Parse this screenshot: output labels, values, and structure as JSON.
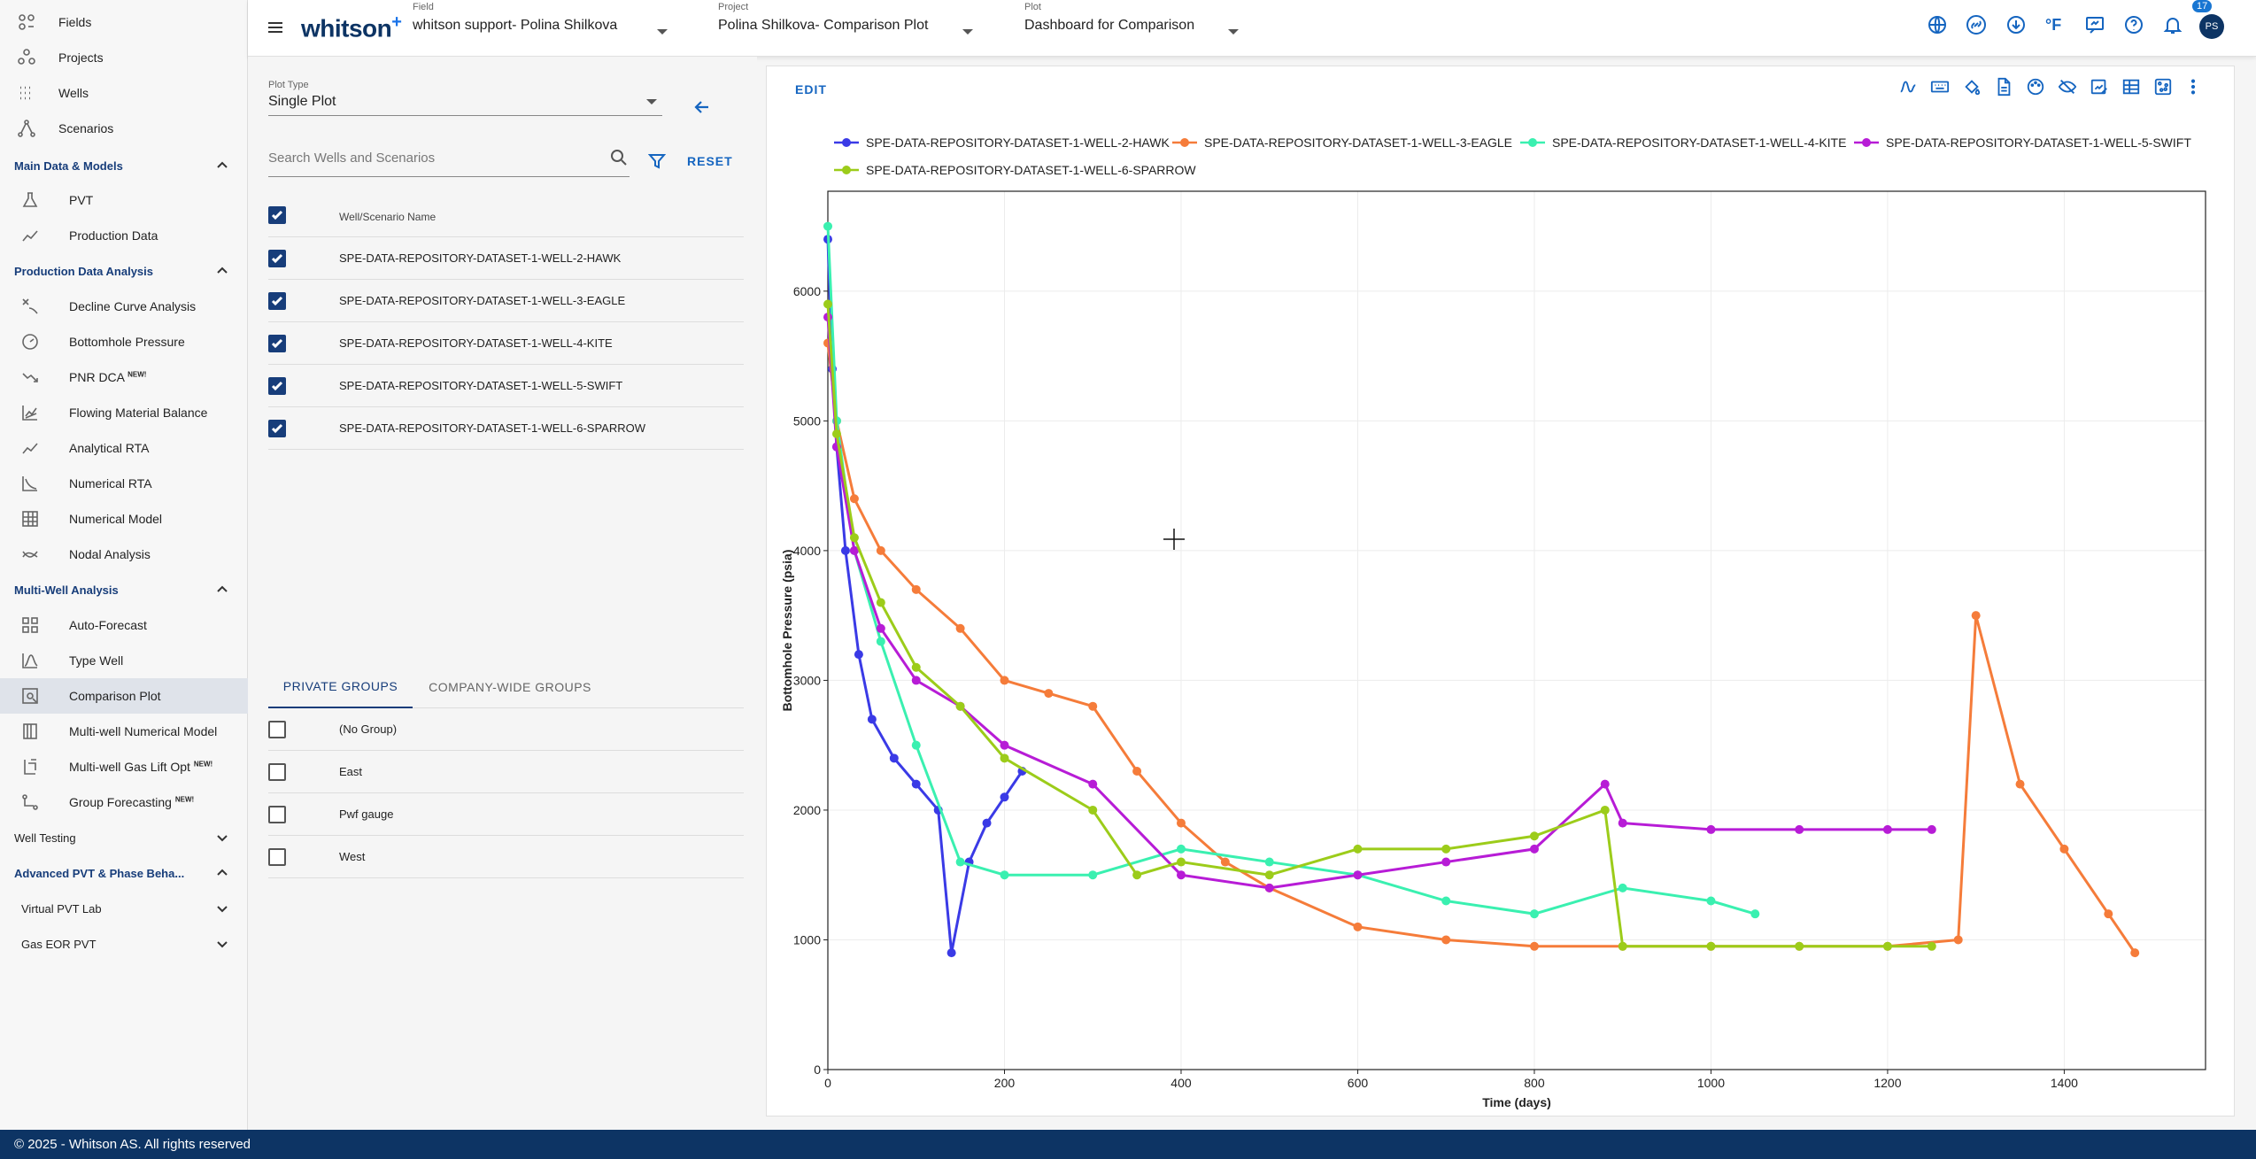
{
  "sidebar": {
    "top_items": [
      {
        "label": "Fields",
        "icon": "fields-icon"
      },
      {
        "label": "Projects",
        "icon": "projects-icon"
      },
      {
        "label": "Wells",
        "icon": "wells-icon"
      },
      {
        "label": "Scenarios",
        "icon": "scenarios-icon"
      }
    ],
    "sections": [
      {
        "label": "Main Data & Models"
      },
      {
        "label": "Production Data Analysis"
      },
      {
        "label": "Multi-Well Analysis"
      },
      {
        "label": "Well Testing"
      },
      {
        "label": "Advanced PVT & Phase Beha..."
      },
      {
        "label": "Virtual PVT Lab"
      },
      {
        "label": "Gas EOR PVT"
      }
    ],
    "items": [
      {
        "label": "PVT",
        "icon": "flask-icon"
      },
      {
        "label": "Production Data",
        "icon": "trend-line-icon"
      },
      {
        "label": "Decline Curve Analysis",
        "icon": "decline-icon"
      },
      {
        "label": "Bottomhole Pressure",
        "icon": "gauge-icon"
      },
      {
        "label": "PNR DCA",
        "icon": "trend-down-icon",
        "badge": "NEW!"
      },
      {
        "label": "Flowing Material Balance",
        "icon": "chart-lines-icon"
      },
      {
        "label": "Analytical RTA",
        "icon": "trend-line-icon"
      },
      {
        "label": "Numerical RTA",
        "icon": "chart-curve-icon"
      },
      {
        "label": "Numerical Model",
        "icon": "grid-building-icon"
      },
      {
        "label": "Nodal Analysis",
        "icon": "nodal-icon"
      },
      {
        "label": "Auto-Forecast",
        "icon": "grid-icon"
      },
      {
        "label": "Type Well",
        "icon": "bell-curve-icon"
      },
      {
        "label": "Comparison Plot",
        "icon": "comparison-plot-icon"
      },
      {
        "label": "Multi-well Numerical Model",
        "icon": "columns-icon"
      },
      {
        "label": "Multi-well Gas Lift Opt",
        "icon": "gas-lift-icon",
        "badge": "NEW!"
      },
      {
        "label": "Group Forecasting",
        "icon": "group-forecast-icon",
        "badge": "NEW!"
      }
    ]
  },
  "topbar": {
    "logo": "whitson",
    "logo_plus": "+",
    "field_label": "Field",
    "field_value": "whitson support- Polina Shilkova",
    "project_label": "Project",
    "project_value": "Polina Shilkova- Comparison Plot",
    "plot_label": "Plot",
    "plot_value": "Dashboard for Comparison",
    "temp_unit": "°F",
    "notif_count": "17",
    "avatar": "PS"
  },
  "panel": {
    "plot_type_label": "Plot Type",
    "plot_type_value": "Single Plot",
    "search_placeholder": "Search Wells and Scenarios",
    "reset": "RESET",
    "col_header": "Well/Scenario Name",
    "wells": [
      "SPE-DATA-REPOSITORY-DATASET-1-WELL-2-HAWK",
      "SPE-DATA-REPOSITORY-DATASET-1-WELL-3-EAGLE",
      "SPE-DATA-REPOSITORY-DATASET-1-WELL-4-KITE",
      "SPE-DATA-REPOSITORY-DATASET-1-WELL-5-SWIFT",
      "SPE-DATA-REPOSITORY-DATASET-1-WELL-6-SPARROW"
    ],
    "tab_private": "PRIVATE GROUPS",
    "tab_company": "COMPANY-WIDE GROUPS",
    "groups": [
      "(No Group)",
      "East",
      "Pwf gauge",
      "West"
    ]
  },
  "plot": {
    "edit": "EDIT"
  },
  "chart_data": {
    "type": "line",
    "xlabel": "Time (days)",
    "ylabel": "Bottomhole Pressure (psia)",
    "xlim": [
      0,
      1560
    ],
    "ylim": [
      0,
      6770
    ],
    "xticks": [
      0,
      200,
      400,
      600,
      800,
      1000,
      1200,
      1400
    ],
    "yticks": [
      0,
      1000,
      2000,
      3000,
      4000,
      5000,
      6000
    ],
    "legend_position": "top",
    "series": [
      {
        "name": "SPE-DATA-REPOSITORY-DATASET-1-WELL-2-HAWK",
        "color": "#3a3ae6",
        "x": [
          0,
          5,
          10,
          20,
          35,
          50,
          75,
          100,
          125,
          140,
          160,
          180,
          200,
          220
        ],
        "y": [
          6400,
          5400,
          4800,
          4000,
          3200,
          2700,
          2400,
          2200,
          2000,
          900,
          1600,
          1900,
          2100,
          2300
        ]
      },
      {
        "name": "SPE-DATA-REPOSITORY-DATASET-1-WELL-3-EAGLE",
        "color": "#f57c3a",
        "x": [
          0,
          10,
          30,
          60,
          100,
          150,
          200,
          250,
          300,
          350,
          400,
          450,
          500,
          600,
          700,
          800,
          900,
          1000,
          1100,
          1200,
          1280,
          1300,
          1350,
          1400,
          1450,
          1480
        ],
        "y": [
          5600,
          5000,
          4400,
          4000,
          3700,
          3400,
          3000,
          2900,
          2800,
          2300,
          1900,
          1600,
          1400,
          1100,
          1000,
          950,
          950,
          950,
          950,
          950,
          1000,
          3500,
          2200,
          1700,
          1200,
          900
        ]
      },
      {
        "name": "SPE-DATA-REPOSITORY-DATASET-1-WELL-4-KITE",
        "color": "#3af0b0",
        "x": [
          0,
          10,
          30,
          60,
          100,
          150,
          200,
          300,
          400,
          500,
          600,
          700,
          800,
          900,
          1000,
          1050
        ],
        "y": [
          6500,
          5000,
          4000,
          3300,
          2500,
          1600,
          1500,
          1500,
          1700,
          1600,
          1500,
          1300,
          1200,
          1400,
          1300,
          1200
        ]
      },
      {
        "name": "SPE-DATA-REPOSITORY-DATASET-1-WELL-5-SWIFT",
        "color": "#b71cd6",
        "x": [
          0,
          10,
          30,
          60,
          100,
          150,
          200,
          300,
          400,
          500,
          600,
          700,
          800,
          880,
          900,
          1000,
          1100,
          1200,
          1250
        ],
        "y": [
          5800,
          4800,
          4000,
          3400,
          3000,
          2800,
          2500,
          2200,
          1500,
          1400,
          1500,
          1600,
          1700,
          2200,
          1900,
          1850,
          1850,
          1850,
          1850
        ]
      },
      {
        "name": "SPE-DATA-REPOSITORY-DATASET-1-WELL-6-SPARROW",
        "color": "#9ccc1a",
        "x": [
          0,
          10,
          30,
          60,
          100,
          150,
          200,
          300,
          350,
          400,
          500,
          600,
          700,
          800,
          880,
          900,
          1000,
          1100,
          1200,
          1250
        ],
        "y": [
          5900,
          4900,
          4100,
          3600,
          3100,
          2800,
          2400,
          2000,
          1500,
          1600,
          1500,
          1700,
          1700,
          1800,
          2000,
          950,
          950,
          950,
          950,
          950
        ]
      }
    ]
  }
}
